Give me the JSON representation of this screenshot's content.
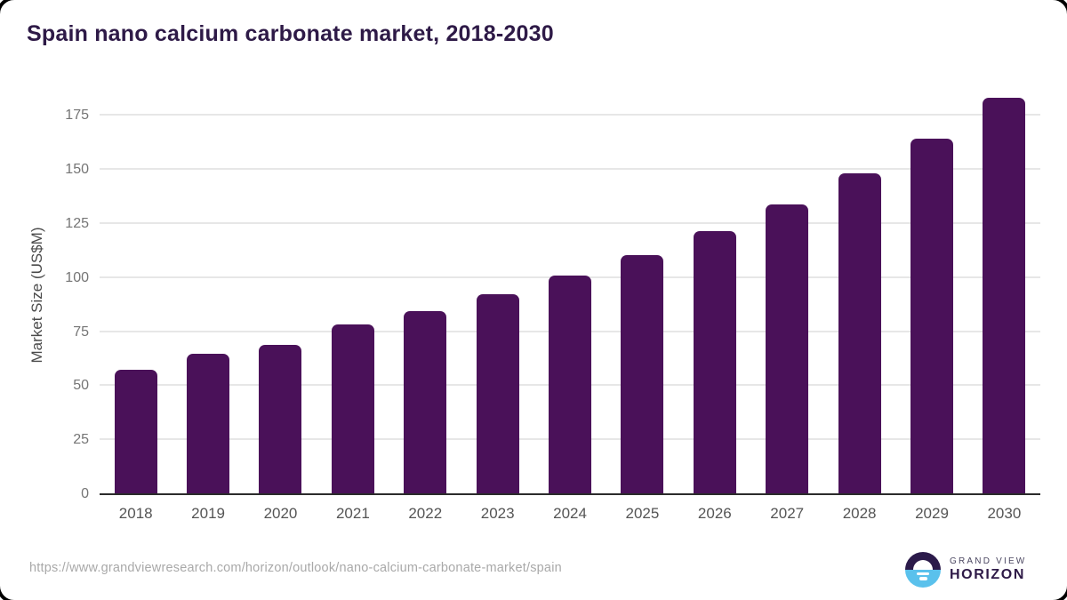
{
  "title": "Spain nano calcium carbonate market, 2018-2030",
  "source_url": "https://www.grandviewresearch.com/horizon/outlook/nano-calcium-carbonate-market/spain",
  "branding": {
    "name_top": "GRAND VIEW",
    "name_bottom": "HORIZON",
    "logo_icon": "horizon-sun-logo"
  },
  "colors": {
    "bar": "#4a1159",
    "title_text": "#2e1a47",
    "axis_line": "#2b2b2b",
    "gridline": "#e7e7e7",
    "tick_label": "#757575",
    "year_label": "#555555",
    "source_text": "#a9a9a9",
    "logo_dark": "#2b1a4a",
    "logo_blue": "#5ac1ec"
  },
  "chart_data": {
    "type": "bar",
    "title": "Spain nano calcium carbonate market, 2018-2030",
    "categories": [
      "2018",
      "2019",
      "2020",
      "2021",
      "2022",
      "2023",
      "2024",
      "2025",
      "2026",
      "2027",
      "2028",
      "2029",
      "2030"
    ],
    "values": [
      57.4,
      65.1,
      69.1,
      78.4,
      84.7,
      92.4,
      101.0,
      110.6,
      121.6,
      134.0,
      148.4,
      164.5,
      183.5
    ],
    "xlabel": "",
    "ylabel": "Market Size (US$M)",
    "ylim": [
      0,
      190
    ],
    "yticks": [
      0,
      25,
      50,
      75,
      100,
      125,
      150,
      175
    ],
    "grid": true,
    "legend": false,
    "bar_color": "#4a1159"
  }
}
